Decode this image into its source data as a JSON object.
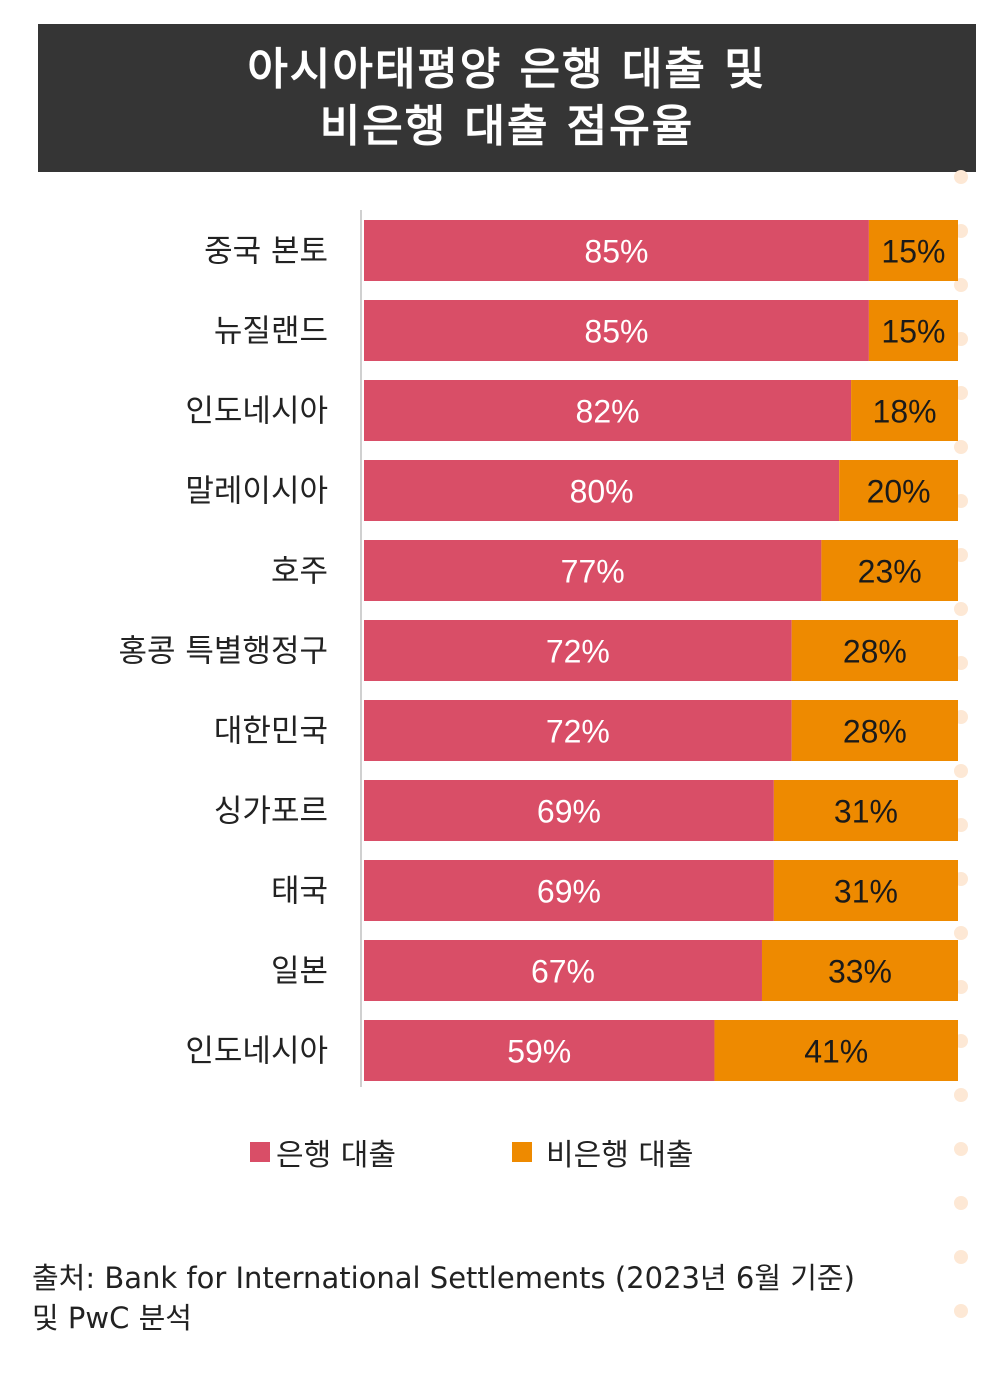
{
  "title": {
    "line1": "아시아태평양 은행 대출 및",
    "line2": "비은행 대출 점유율"
  },
  "chart_data": {
    "type": "bar",
    "orientation": "horizontal",
    "stacked": true,
    "categories": [
      "중국 본토",
      "뉴질랜드",
      "인도네시아",
      "말레이시아",
      "호주",
      "홍콩 특별행정구",
      "대한민국",
      "싱가포르",
      "태국",
      "일본",
      "인도네시아"
    ],
    "series": [
      {
        "name": "은행 대출",
        "values": [
          85,
          85,
          82,
          80,
          77,
          72,
          72,
          69,
          69,
          67,
          59
        ],
        "labels": [
          "85%",
          "85%",
          "82%",
          "80%",
          "77%",
          "72%",
          "72%",
          "69%",
          "69%",
          "67%",
          "59%"
        ],
        "color": "#d94e67"
      },
      {
        "name": "비은행 대출",
        "values": [
          15,
          15,
          18,
          20,
          23,
          28,
          28,
          31,
          31,
          33,
          41
        ],
        "labels": [
          "15%",
          "15%",
          "18%",
          "20%",
          "23%",
          "28%",
          "28%",
          "31%",
          "31%",
          "33%",
          "41%"
        ],
        "color": "#ee8a00"
      }
    ],
    "xlim": [
      0,
      100
    ],
    "legend": "bottom",
    "grid": false
  },
  "legend": {
    "bank": "은행 대출",
    "nonbank": "비은행 대출"
  },
  "source": {
    "line1": "출처: Bank for International Settlements (2023년 6월 기준)",
    "line2": "및 PwC 분석"
  }
}
